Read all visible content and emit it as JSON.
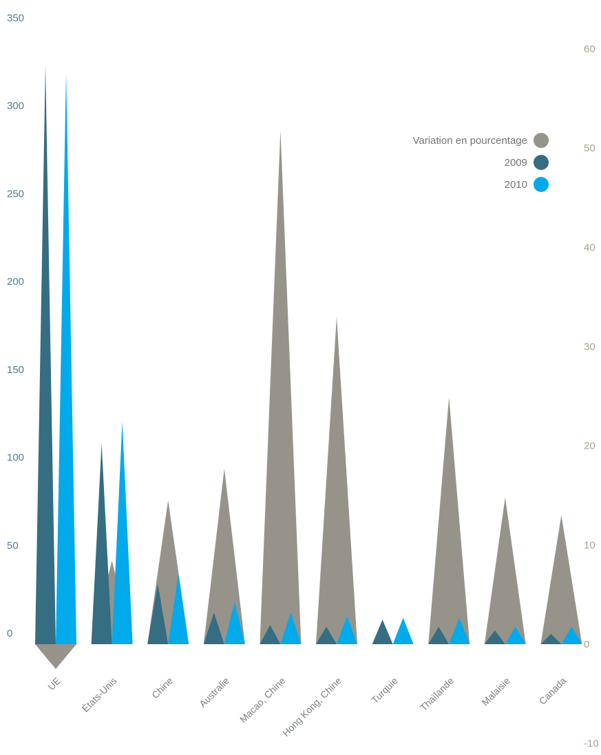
{
  "chart_data": {
    "type": "bar",
    "mark_shape": "triangle",
    "categories": [
      "UE",
      "États-Unis",
      "Chine",
      "Australie",
      "Macao, Chine",
      "Hong Kong, Chine",
      "Turquie",
      "Thaïlande",
      "Malaisie",
      "Canada"
    ],
    "left_axis": {
      "ylim": [
        0,
        350
      ],
      "ticks": [
        "0",
        "50",
        "100",
        "150",
        "200",
        "250",
        "300",
        "350"
      ],
      "color": "#4f7d93"
    },
    "right_axis": {
      "ylim": [
        -10,
        60
      ],
      "ticks": [
        "-10",
        "0",
        "10",
        "20",
        "30",
        "40",
        "50",
        "60"
      ],
      "color": "#a8a294"
    },
    "series": [
      {
        "name": "Variation en pourcentage",
        "axis": "right",
        "color": "#96938a",
        "values": [
          -2.5,
          8.4,
          14.5,
          17.7,
          51.8,
          33.0,
          0,
          24.9,
          14.8,
          13.0
        ]
      },
      {
        "name": "2009",
        "axis": "left",
        "color": "#356d82",
        "values": [
          324,
          112,
          33,
          17,
          10,
          9,
          13,
          9,
          7,
          5
        ]
      },
      {
        "name": "2010",
        "axis": "left",
        "color": "#00aaeb",
        "values": [
          320,
          124,
          39,
          23,
          17,
          15,
          14,
          14,
          9,
          9
        ]
      }
    ],
    "legend_position": "top-right",
    "grid": false
  }
}
